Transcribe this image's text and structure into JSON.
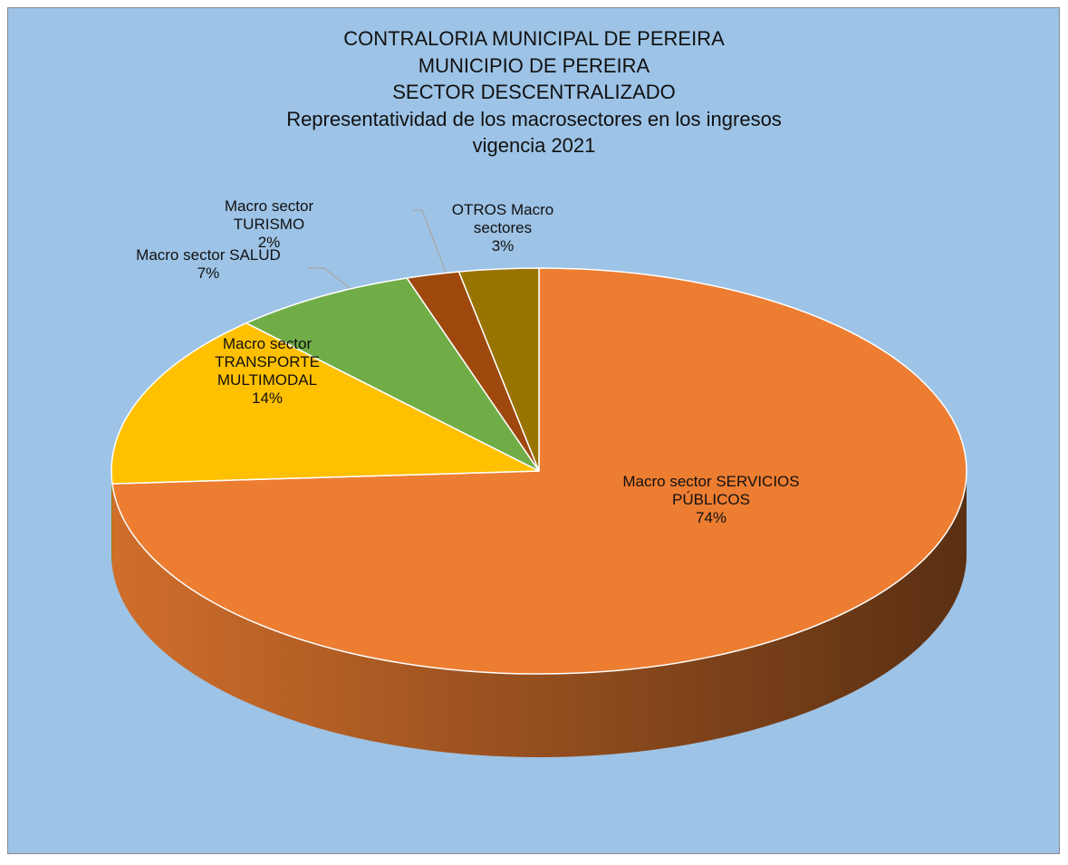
{
  "chart_data": {
    "type": "pie",
    "title": [
      "CONTRALORIA MUNICIPAL DE PEREIRA",
      "MUNICIPIO DE PEREIRA",
      "SECTOR DESCENTRALIZADO",
      "Representatividad de los macrosectores en los ingresos",
      "vigencia 2021"
    ],
    "categories": [
      "Macro sector SERVICIOS PÚBLICOS",
      "Macro sector TRANSPORTE MULTIMODAL",
      "Macro sector SALUD",
      "Macro sector TURISMO",
      "OTROS Macro sectores"
    ],
    "values": [
      74,
      14,
      7,
      2,
      3
    ],
    "value_labels": [
      "74%",
      "14%",
      "7%",
      "2%",
      "3%"
    ],
    "colors": [
      "#ed7d31",
      "#ffc000",
      "#70ad47",
      "#9e480e",
      "#997300"
    ]
  }
}
